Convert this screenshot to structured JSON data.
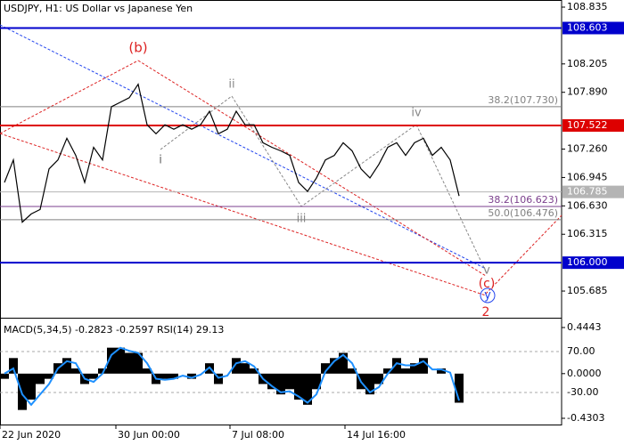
{
  "chart_data": [
    {
      "type": "line",
      "title": "USDJPY, H1:  US Dollar vs Japanese Yen",
      "color": "#000000",
      "x": [
        0.5,
        1.5,
        2.5,
        3.5,
        4.5,
        5.5,
        6.5,
        7.5,
        8.5,
        9.5,
        10.5,
        11.5,
        12.5,
        13.5,
        14.5,
        15.5,
        16.5,
        17.5,
        18.5,
        19.5,
        20.5,
        21.5,
        22.5,
        23.5,
        24.5,
        25.5,
        26.5,
        27.5,
        28.5,
        29.5,
        30.5,
        31.5,
        32.5,
        33.5,
        34.5,
        35.5,
        36.5,
        37.5,
        38.5,
        39.5,
        40.5,
        41.5,
        42.5,
        43.5,
        44.5,
        45.5,
        46.5,
        47.5,
        48.5,
        49.5,
        50.5,
        51.5
      ],
      "values": [
        106.89,
        107.14,
        106.45,
        106.54,
        106.59,
        107.04,
        107.14,
        107.38,
        107.19,
        106.89,
        107.28,
        107.14,
        107.73,
        107.78,
        107.83,
        107.98,
        107.53,
        107.43,
        107.53,
        107.48,
        107.53,
        107.48,
        107.53,
        107.68,
        107.43,
        107.48,
        107.68,
        107.53,
        107.53,
        107.33,
        107.28,
        107.24,
        107.19,
        106.89,
        106.79,
        106.94,
        107.14,
        107.19,
        107.33,
        107.24,
        107.04,
        106.94,
        107.09,
        107.28,
        107.33,
        107.19,
        107.33,
        107.38,
        107.19,
        107.28,
        107.14,
        106.74
      ],
      "xlim": [
        0,
        63
      ],
      "xticks": [
        {
          "value": 0,
          "label": "22 Jun 2020"
        },
        {
          "value": 13,
          "label": "30 Jun 00:00"
        },
        {
          "value": 25.8,
          "label": "7 Jul 08:00"
        },
        {
          "value": 38.7,
          "label": "14 Jul 16:00"
        }
      ],
      "ylim": [
        105.399,
        108.914
      ],
      "yticks": [
        108.835,
        108.205,
        {
          "value": 107.89,
          "label": "107.890"
        },
        {
          "value": 107.26,
          "label": "107.260"
        },
        106.945,
        {
          "value": 106.63,
          "label": "106.630"
        },
        106.315,
        105.685
      ],
      "levels": [
        {
          "value": 108.603,
          "color": "#0000cc"
        },
        {
          "value": 107.522,
          "color": "#dd0000"
        },
        {
          "value": 106.785,
          "color": "#b4b4b4"
        },
        {
          "value": {
            "value": 106.0,
            "label": "106.000"
          },
          "color": "#0000cc"
        }
      ],
      "fib_levels": [
        {
          "value": 107.73,
          "label": "38.2(107.730)",
          "color": "#808080"
        },
        {
          "value": 106.623,
          "label": "38.2(106.623)",
          "color": "#7b3f8c"
        },
        {
          "value": 106.476,
          "label": "50.0(106.476)",
          "color": "#808080"
        }
      ],
      "annotations": [
        "(b)",
        "i",
        "ii",
        "iii",
        "iv",
        "v",
        "(c)",
        "y",
        "2"
      ]
    },
    {
      "type": "bar",
      "title": "MACD(5,34,5) -0.2823 -0.2597 RSI(14) 29.13",
      "color": "#000000",
      "values": [
        -0.05,
        0.15,
        -0.35,
        -0.25,
        -0.1,
        -0.05,
        0.1,
        0.15,
        0.05,
        -0.1,
        -0.05,
        0.05,
        0.25,
        0.25,
        0.2,
        0.2,
        0.05,
        -0.1,
        -0.05,
        -0.05,
        0,
        -0.05,
        0,
        0.1,
        -0.1,
        0,
        0.15,
        0.1,
        0.05,
        -0.1,
        -0.15,
        -0.2,
        -0.15,
        -0.25,
        -0.3,
        -0.15,
        0.1,
        0.15,
        0.2,
        0.05,
        -0.15,
        -0.2,
        -0.1,
        0.05,
        0.15,
        0.05,
        0.1,
        0.15,
        0,
        0.05,
        0,
        -0.28
      ],
      "signal": {
        "color": "#1e90ff",
        "values": [
          0,
          0.05,
          -0.2,
          -0.3,
          -0.2,
          -0.1,
          0.05,
          0.12,
          0.1,
          -0.05,
          -0.08,
          0,
          0.18,
          0.25,
          0.22,
          0.2,
          0.1,
          -0.05,
          -0.06,
          -0.05,
          -0.02,
          -0.04,
          -0.01,
          0.06,
          -0.04,
          -0.02,
          0.1,
          0.12,
          0.07,
          -0.05,
          -0.12,
          -0.18,
          -0.17,
          -0.22,
          -0.28,
          -0.2,
          0.02,
          0.12,
          0.18,
          0.1,
          -0.08,
          -0.18,
          -0.13,
          0,
          0.1,
          0.08,
          0.08,
          0.12,
          0.04,
          0.04,
          0.01,
          -0.26
        ]
      },
      "ylim": [
        -0.499,
        0.53
      ],
      "yticks": [
        0.4443,
        {
          "value": 0,
          "label": "0.0000"
        },
        -0.4303
      ],
      "y2lim": [
        -110.4,
        150.4
      ],
      "y2ticks": [
        {
          "value": 70,
          "label": "70.00"
        },
        {
          "value": -30,
          "label": "-30.00"
        }
      ]
    }
  ]
}
